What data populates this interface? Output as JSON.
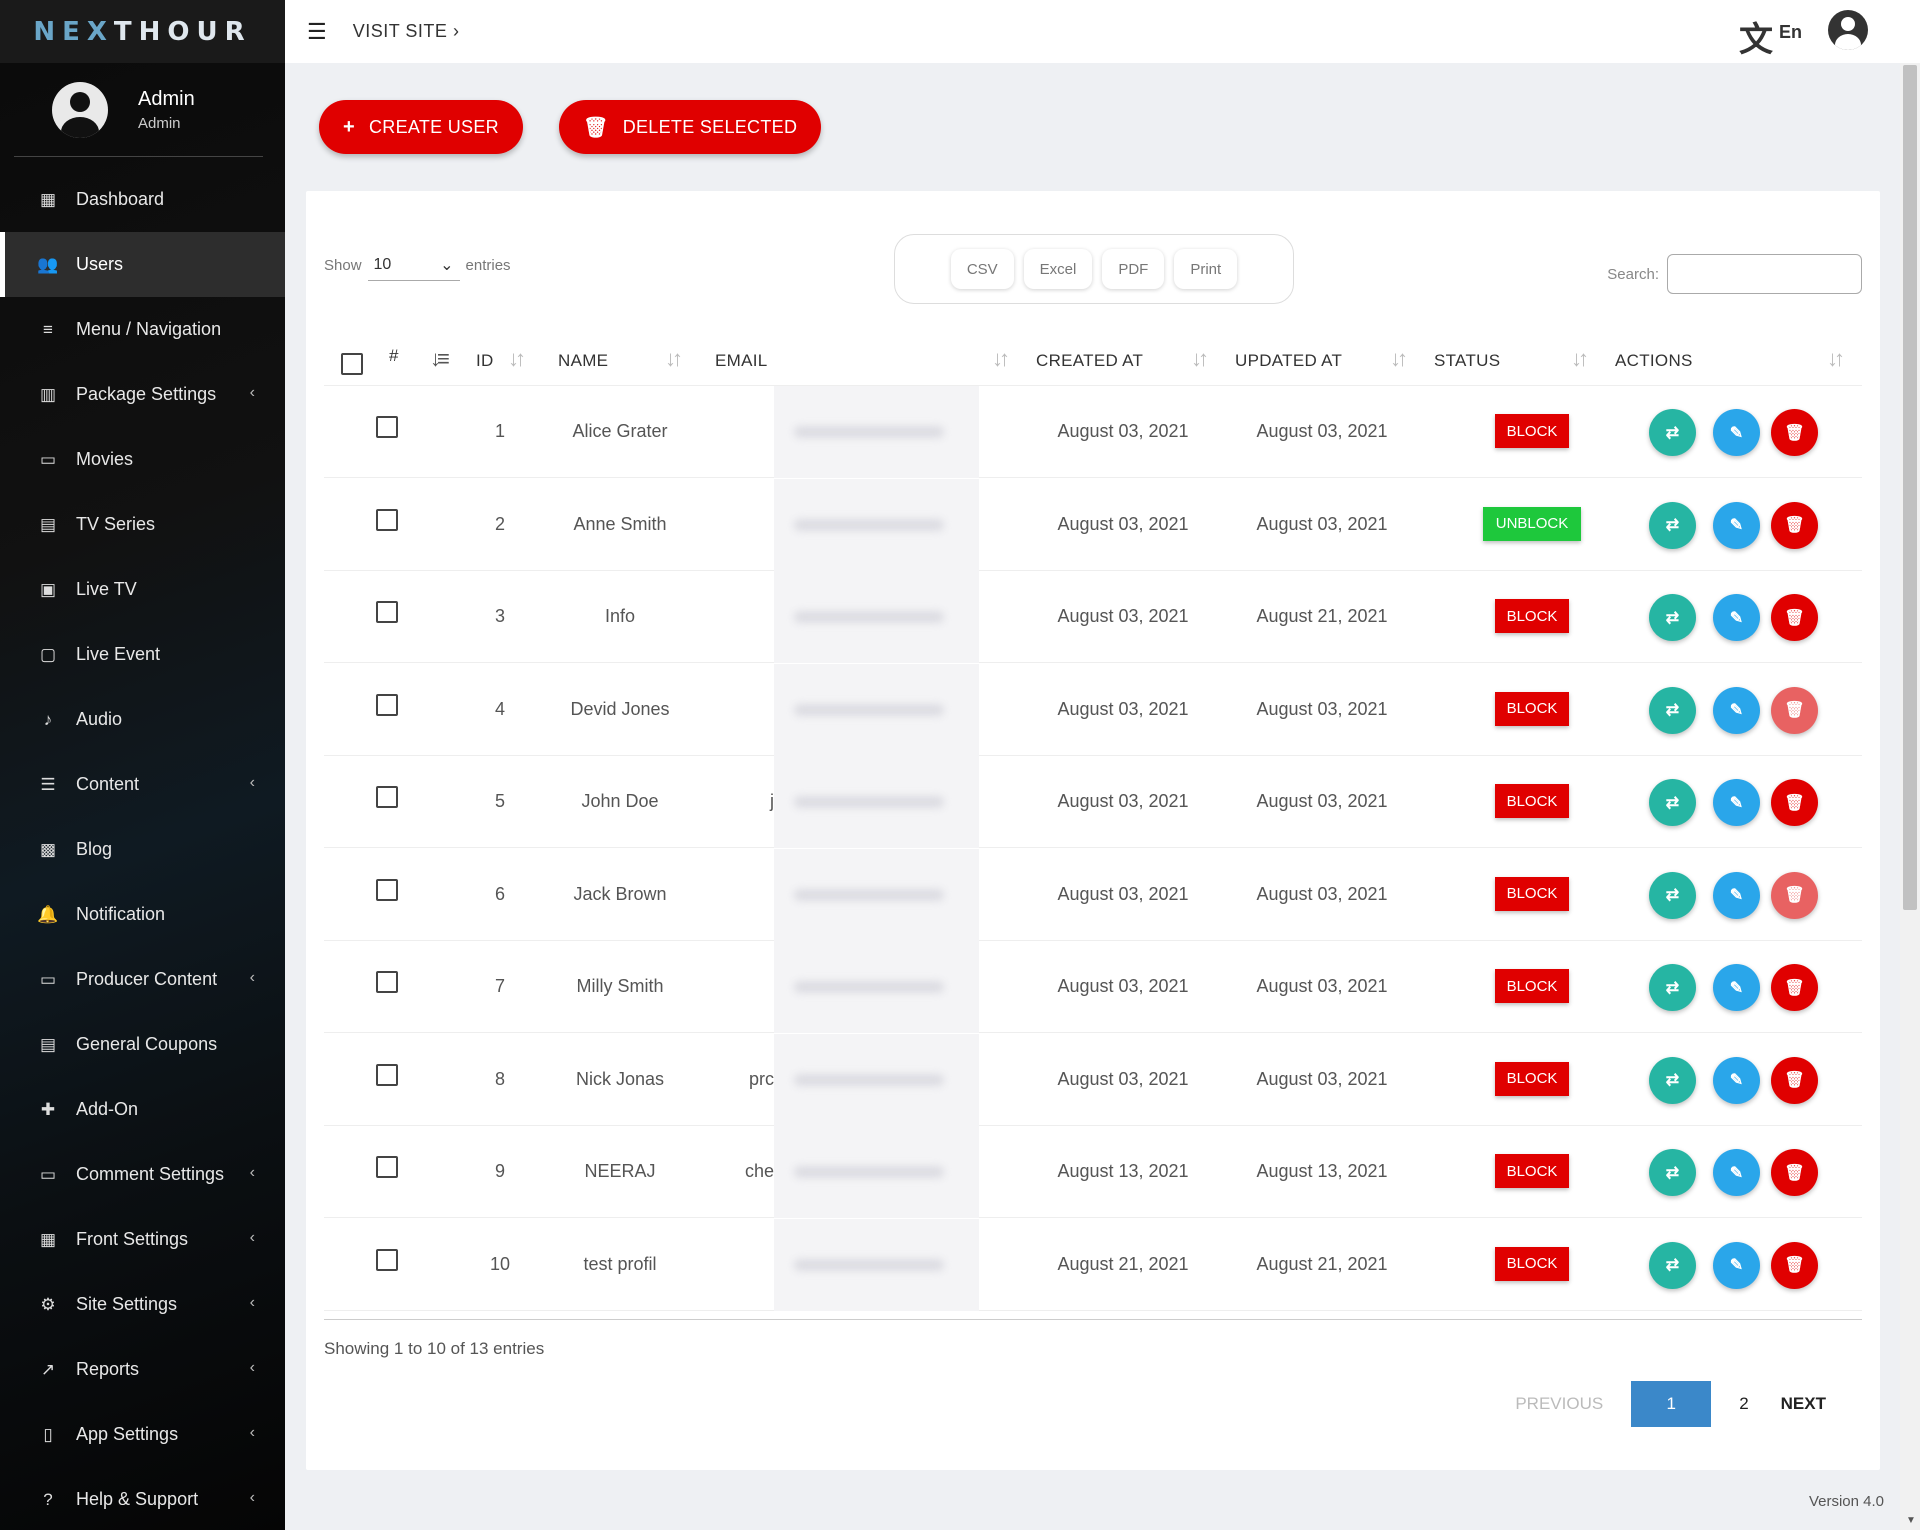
{
  "brand": {
    "logo_left": "NEX",
    "logo_right": "THOUR"
  },
  "profile": {
    "name": "Admin",
    "role": "Admin"
  },
  "nav": [
    {
      "label": "Dashboard",
      "icon": "dashboard-icon",
      "glyph": "▦",
      "chevron": false,
      "active": false
    },
    {
      "label": "Users",
      "icon": "users-icon",
      "glyph": "👥",
      "chevron": false,
      "active": true
    },
    {
      "label": "Menu / Navigation",
      "icon": "menu-icon",
      "glyph": "≡",
      "chevron": false,
      "active": false
    },
    {
      "label": "Package Settings",
      "icon": "package-icon",
      "glyph": "▥",
      "chevron": true,
      "active": false
    },
    {
      "label": "Movies",
      "icon": "movie-icon",
      "glyph": "▭",
      "chevron": false,
      "active": false
    },
    {
      "label": "TV Series",
      "icon": "tv-series-icon",
      "glyph": "▤",
      "chevron": false,
      "active": false
    },
    {
      "label": "Live TV",
      "icon": "live-tv-icon",
      "glyph": "▣",
      "chevron": false,
      "active": false
    },
    {
      "label": "Live Event",
      "icon": "calendar-icon",
      "glyph": "▢",
      "chevron": false,
      "active": false
    },
    {
      "label": "Audio",
      "icon": "music-icon",
      "glyph": "♪",
      "chevron": false,
      "active": false
    },
    {
      "label": "Content",
      "icon": "filter-icon",
      "glyph": "☰",
      "chevron": true,
      "active": false
    },
    {
      "label": "Blog",
      "icon": "blog-icon",
      "glyph": "▩",
      "chevron": false,
      "active": false
    },
    {
      "label": "Notification",
      "icon": "bell-icon",
      "glyph": "🔔",
      "chevron": false,
      "active": false
    },
    {
      "label": "Producer Content",
      "icon": "producer-icon",
      "glyph": "▭",
      "chevron": true,
      "active": false
    },
    {
      "label": "General Coupons",
      "icon": "coupon-icon",
      "glyph": "▤",
      "chevron": false,
      "active": false
    },
    {
      "label": "Add-On",
      "icon": "puzzle-icon",
      "glyph": "✚",
      "chevron": false,
      "active": false
    },
    {
      "label": "Comment Settings",
      "icon": "comment-icon",
      "glyph": "▭",
      "chevron": true,
      "active": false
    },
    {
      "label": "Front Settings",
      "icon": "front-icon",
      "glyph": "▦",
      "chevron": true,
      "active": false
    },
    {
      "label": "Site Settings",
      "icon": "gear-icon",
      "glyph": "⚙",
      "chevron": true,
      "active": false
    },
    {
      "label": "Reports",
      "icon": "trend-icon",
      "glyph": "↗",
      "chevron": true,
      "active": false
    },
    {
      "label": "App Settings",
      "icon": "app-icon",
      "glyph": "▯",
      "chevron": true,
      "active": false
    },
    {
      "label": "Help & Support",
      "icon": "help-icon",
      "glyph": "?",
      "chevron": true,
      "active": false
    }
  ],
  "topbar": {
    "visit_site": "VISIT SITE",
    "lang": "En"
  },
  "buttons": {
    "create_user": "CREATE USER",
    "delete_selected": "DELETE SELECTED"
  },
  "table_controls": {
    "show_label": "Show",
    "entries_value": "10",
    "entries_label": "entries",
    "exports": [
      "CSV",
      "Excel",
      "PDF",
      "Print"
    ],
    "search_label": "Search:"
  },
  "columns": {
    "hash": "#",
    "id": "ID",
    "name": "NAME",
    "email": "EMAIL",
    "created": "CREATED AT",
    "updated": "UPDATED AT",
    "status": "STATUS",
    "actions": "ACTIONS"
  },
  "rows": [
    {
      "id": "1",
      "name": "Alice Grater",
      "email_prefix": "",
      "created": "August 03, 2021",
      "updated": "August 03, 2021",
      "status": "BLOCK",
      "del_light": false
    },
    {
      "id": "2",
      "name": "Anne Smith",
      "email_prefix": "",
      "created": "August 03, 2021",
      "updated": "August 03, 2021",
      "status": "UNBLOCK",
      "del_light": false
    },
    {
      "id": "3",
      "name": "Info",
      "email_prefix": "",
      "created": "August 03, 2021",
      "updated": "August 21, 2021",
      "status": "BLOCK",
      "del_light": false
    },
    {
      "id": "4",
      "name": "Devid Jones",
      "email_prefix": "",
      "created": "August 03, 2021",
      "updated": "August 03, 2021",
      "status": "BLOCK",
      "del_light": true
    },
    {
      "id": "5",
      "name": "John Doe",
      "email_prefix": "j",
      "created": "August 03, 2021",
      "updated": "August 03, 2021",
      "status": "BLOCK",
      "del_light": false
    },
    {
      "id": "6",
      "name": "Jack Brown",
      "email_prefix": "",
      "created": "August 03, 2021",
      "updated": "August 03, 2021",
      "status": "BLOCK",
      "del_light": true
    },
    {
      "id": "7",
      "name": "Milly Smith",
      "email_prefix": "",
      "created": "August 03, 2021",
      "updated": "August 03, 2021",
      "status": "BLOCK",
      "del_light": false
    },
    {
      "id": "8",
      "name": "Nick Jonas",
      "email_prefix": "prc",
      "created": "August 03, 2021",
      "updated": "August 03, 2021",
      "status": "BLOCK",
      "del_light": false
    },
    {
      "id": "9",
      "name": "NEERAJ",
      "email_prefix": "che",
      "created": "August 13, 2021",
      "updated": "August 13, 2021",
      "status": "BLOCK",
      "del_light": false
    },
    {
      "id": "10",
      "name": "test profil",
      "email_prefix": "",
      "created": "August 21, 2021",
      "updated": "August 21, 2021",
      "status": "BLOCK",
      "del_light": false
    }
  ],
  "footer": {
    "info": "Showing 1 to 10 of 13 entries",
    "previous": "PREVIOUS",
    "pages": [
      "1",
      "2"
    ],
    "next": "NEXT",
    "version": "Version 4.0"
  },
  "colors": {
    "accent_red": "#e00000",
    "unblock_green": "#1ec83c",
    "login_teal": "#26b5a3",
    "edit_blue": "#2aa6ea",
    "pager_blue": "#3b88c9"
  }
}
